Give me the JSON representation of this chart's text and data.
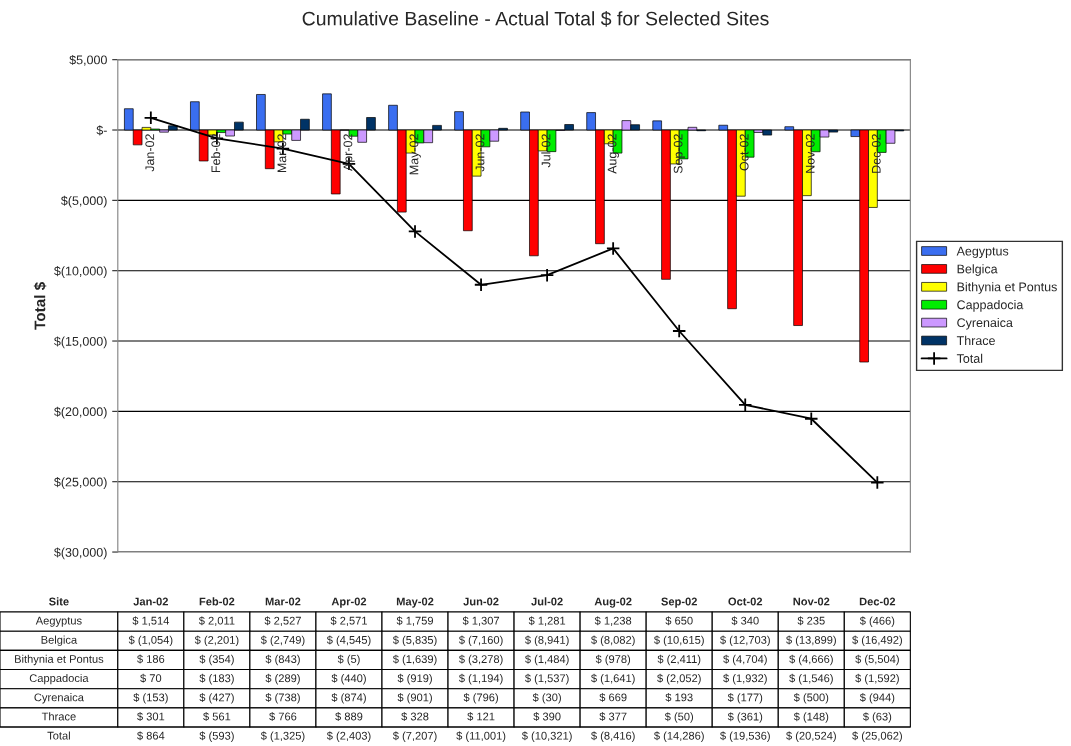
{
  "chart_data": {
    "type": "bar",
    "title": "Cumulative Baseline - Actual Total $ for Selected Sites",
    "ylabel": "Total $",
    "categories": [
      "Jan-02",
      "Feb-02",
      "Mar-02",
      "Apr-02",
      "May-02",
      "Jun-02",
      "Jul-02",
      "Aug-02",
      "Sep-02",
      "Oct-02",
      "Nov-02",
      "Dec-02"
    ],
    "series": [
      {
        "name": "Aegyptus",
        "color": "#3a6ef0",
        "values": [
          1514,
          2011,
          2527,
          2571,
          1759,
          1307,
          1281,
          1238,
          650,
          340,
          235,
          -466
        ],
        "value_labels": [
          "$ 1,514",
          "$ 2,011",
          "$ 2,527",
          "$ 2,571",
          "$ 1,759",
          "$ 1,307",
          "$ 1,281",
          "$ 1,238",
          "$ 650",
          "$ 340",
          "$ 235",
          "$ (466)"
        ]
      },
      {
        "name": "Belgica",
        "color": "#ff0000",
        "values": [
          -1054,
          -2201,
          -2749,
          -4545,
          -5835,
          -7160,
          -8941,
          -8082,
          -10615,
          -12703,
          -13899,
          -16492
        ],
        "value_labels": [
          "$ (1,054)",
          "$ (2,201)",
          "$ (2,749)",
          "$ (4,545)",
          "$ (5,835)",
          "$ (7,160)",
          "$ (8,941)",
          "$ (8,082)",
          "$ (10,615)",
          "$ (12,703)",
          "$ (13,899)",
          "$ (16,492)"
        ]
      },
      {
        "name": "Bithynia et Pontus",
        "color": "#ffff00",
        "values": [
          186,
          -354,
          -843,
          -5,
          -1639,
          -3278,
          -1484,
          -978,
          -2411,
          -4704,
          -4666,
          -5504
        ],
        "value_labels": [
          "$ 186",
          "$ (354)",
          "$ (843)",
          "$ (5)",
          "$ (1,639)",
          "$ (3,278)",
          "$ (1,484)",
          "$ (978)",
          "$ (2,411)",
          "$ (4,704)",
          "$ (4,666)",
          "$ (5,504)"
        ]
      },
      {
        "name": "Cappadocia",
        "color": "#00ee00",
        "values": [
          70,
          -183,
          -289,
          -440,
          -919,
          -1194,
          -1537,
          -1641,
          -2052,
          -1932,
          -1546,
          -1592
        ],
        "value_labels": [
          "$ 70",
          "$ (183)",
          "$ (289)",
          "$ (440)",
          "$ (919)",
          "$ (1,194)",
          "$ (1,537)",
          "$ (1,641)",
          "$ (2,052)",
          "$ (1,932)",
          "$ (1,546)",
          "$ (1,592)"
        ]
      },
      {
        "name": "Cyrenaica",
        "color": "#cc99ff",
        "values": [
          -153,
          -427,
          -738,
          -874,
          -901,
          -796,
          -30,
          669,
          193,
          -177,
          -500,
          -944
        ],
        "value_labels": [
          "$ (153)",
          "$ (427)",
          "$ (738)",
          "$ (874)",
          "$ (901)",
          "$ (796)",
          "$ (30)",
          "$ 669",
          "$ 193",
          "$ (177)",
          "$ (500)",
          "$ (944)"
        ]
      },
      {
        "name": "Thrace",
        "color": "#003366",
        "values": [
          301,
          561,
          766,
          889,
          328,
          121,
          390,
          377,
          -50,
          -361,
          -148,
          -63
        ],
        "value_labels": [
          "$ 301",
          "$ 561",
          "$ 766",
          "$ 889",
          "$ 328",
          "$ 121",
          "$ 390",
          "$ 377",
          "$ (50)",
          "$ (361)",
          "$ (148)",
          "$ (63)"
        ]
      },
      {
        "name": "Total",
        "type": "line",
        "color": "#000000",
        "marker": "cross",
        "values": [
          864,
          -593,
          -1325,
          -2403,
          -7207,
          -11001,
          -10321,
          -8416,
          -14286,
          -19536,
          -20524,
          -25062
        ],
        "value_labels": [
          "$ 864",
          "$ (593)",
          "$ (1,325)",
          "$ (2,403)",
          "$ (7,207)",
          "$ (11,001)",
          "$ (10,321)",
          "$ (8,416)",
          "$ (14,286)",
          "$ (19,536)",
          "$ (20,524)",
          "$ (25,062)"
        ]
      }
    ],
    "ylim": [
      -30000,
      5000
    ],
    "yticks": [
      {
        "value": -30000,
        "label": "$(30,000)"
      },
      {
        "value": -25000,
        "label": "$(25,000)"
      },
      {
        "value": -20000,
        "label": "$(20,000)"
      },
      {
        "value": -15000,
        "label": "$(15,000)"
      },
      {
        "value": -10000,
        "label": "$(10,000)"
      },
      {
        "value": -5000,
        "label": "$(5,000)"
      },
      {
        "value": 0,
        "label": "$-"
      },
      {
        "value": 5000,
        "label": "$5,000"
      }
    ],
    "grid": "y",
    "legend": "right",
    "annotations": [
      "Site"
    ]
  }
}
